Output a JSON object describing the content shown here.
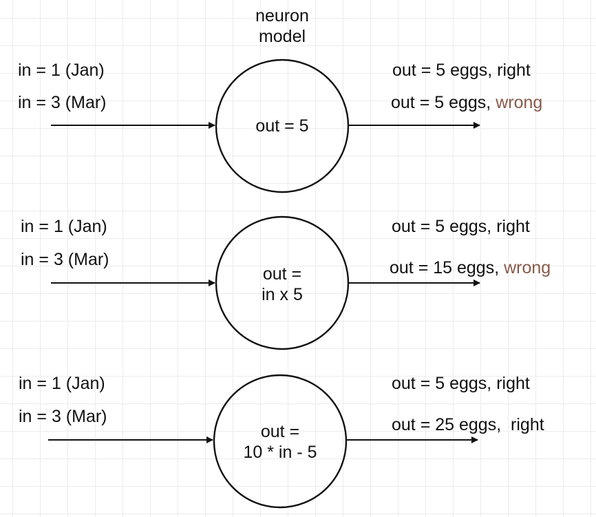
{
  "title": {
    "line1": "neuron",
    "line2": "model"
  },
  "rows": [
    {
      "input1": "in = 1 (Jan)",
      "input2": "in = 3 (Mar)",
      "neuron": {
        "line1": "out = 5",
        "line2": ""
      },
      "out1": {
        "text": "out = 5 eggs, ",
        "verdict": "right"
      },
      "out2": {
        "text": "out = 5 eggs, ",
        "verdict": "wrong"
      }
    },
    {
      "input1": "in = 1 (Jan)",
      "input2": "in = 3 (Mar)",
      "neuron": {
        "line1": "out =",
        "line2": "in x 5"
      },
      "out1": {
        "text": "out = 5 eggs, ",
        "verdict": "right"
      },
      "out2": {
        "text": "out = 15 eggs, ",
        "verdict": "wrong"
      }
    },
    {
      "input1": "in = 1 (Jan)",
      "input2": "in = 3 (Mar)",
      "neuron": {
        "line1": "out =",
        "line2": "10 * in - 5"
      },
      "out1": {
        "text": "out = 5 eggs, ",
        "verdict": "right"
      },
      "out2": {
        "text": "out = 25 eggs,  ",
        "verdict": "right"
      }
    }
  ],
  "colors": {
    "wrong": "#8a5a4a",
    "ink": "#111111",
    "grid": "#ececec"
  }
}
